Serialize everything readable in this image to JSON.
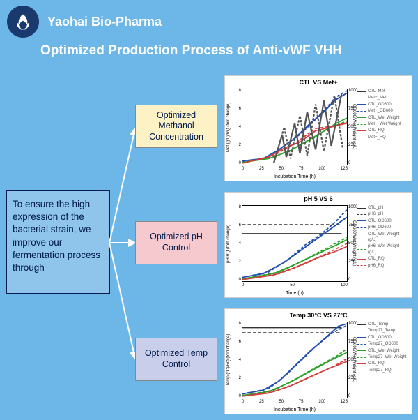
{
  "company": "Yaohai Bio-Pharma",
  "title": "Optimized Production Process of Anti-vWF VHH",
  "intro": "To ensure the high expression of the bacterial strain, we improve our fermentation process through",
  "boxes": [
    {
      "label": "Optimized Methanol Concentration",
      "bg": "#fdf2c6"
    },
    {
      "label": "Optimized pH Control",
      "bg": "#f6c9ce"
    },
    {
      "label": "Optimized Temp Control",
      "bg": "#c9ceea"
    }
  ],
  "page_bg": "#6db7e8",
  "accent": "#1a3a6e",
  "arrow_color": "#ffffff",
  "charts": [
    {
      "title": "CTL VS Met+",
      "xlabel": "Incubation Time (h)",
      "ylabel_l": "Met (g/L)/RQ (fold change)",
      "ylabel_r": "OD600/Wet Weight (g/L)",
      "xlim": [
        0,
        125
      ],
      "xtick_step": 25,
      "ylim_l": [
        0,
        8
      ],
      "ytick_l_step": 2,
      "ylim_r": [
        0,
        1000
      ],
      "ytick_r_step": 250,
      "legend": [
        {
          "label": "CTL_Met",
          "color": "#333333",
          "dash": false
        },
        {
          "label": "Met+_Met",
          "color": "#333333",
          "dash": true
        },
        {
          "label": "CTL_OD600",
          "color": "#1f4eb0",
          "dash": false
        },
        {
          "label": "Met+_OD600",
          "color": "#1f4eb0",
          "dash": true
        },
        {
          "label": "CTL_Wet Weight",
          "color": "#2aa02a",
          "dash": false
        },
        {
          "label": "Met+_Wet Weight",
          "color": "#2aa02a",
          "dash": true
        },
        {
          "label": "CTL_RQ",
          "color": "#d63c3c",
          "dash": false
        },
        {
          "label": "Met+_RQ",
          "color": "#d63c3c",
          "dash": true
        }
      ],
      "series": [
        {
          "color": "#1f4eb0",
          "dash": false,
          "pts": [
            [
              0,
              0.05
            ],
            [
              0.2,
              0.08
            ],
            [
              0.35,
              0.2
            ],
            [
              0.5,
              0.35
            ],
            [
              0.65,
              0.55
            ],
            [
              0.78,
              0.7
            ],
            [
              0.88,
              0.85
            ],
            [
              1,
              0.95
            ]
          ]
        },
        {
          "color": "#1f4eb0",
          "dash": true,
          "pts": [
            [
              0,
              0.04
            ],
            [
              0.25,
              0.1
            ],
            [
              0.4,
              0.25
            ],
            [
              0.55,
              0.4
            ],
            [
              0.7,
              0.6
            ],
            [
              0.82,
              0.78
            ],
            [
              0.92,
              0.92
            ],
            [
              1,
              0.98
            ]
          ]
        },
        {
          "color": "#2aa02a",
          "dash": false,
          "pts": [
            [
              0,
              0.03
            ],
            [
              0.25,
              0.08
            ],
            [
              0.45,
              0.18
            ],
            [
              0.6,
              0.3
            ],
            [
              0.75,
              0.42
            ],
            [
              0.9,
              0.55
            ],
            [
              1,
              0.62
            ]
          ]
        },
        {
          "color": "#2aa02a",
          "dash": true,
          "pts": [
            [
              0,
              0.03
            ],
            [
              0.3,
              0.1
            ],
            [
              0.5,
              0.22
            ],
            [
              0.68,
              0.35
            ],
            [
              0.82,
              0.48
            ],
            [
              1,
              0.58
            ]
          ]
        },
        {
          "color": "#d63c3c",
          "dash": false,
          "pts": [
            [
              0,
              0.02
            ],
            [
              0.25,
              0.1
            ],
            [
              0.4,
              0.22
            ],
            [
              0.55,
              0.3
            ],
            [
              0.7,
              0.45
            ],
            [
              0.85,
              0.5
            ],
            [
              1,
              0.55
            ]
          ]
        },
        {
          "color": "#d63c3c",
          "dash": true,
          "pts": [
            [
              0,
              0.02
            ],
            [
              0.3,
              0.12
            ],
            [
              0.5,
              0.28
            ],
            [
              0.7,
              0.48
            ],
            [
              0.9,
              0.52
            ],
            [
              1,
              0.56
            ]
          ]
        },
        {
          "color": "#555555",
          "dash": false,
          "pts": [
            [
              0.3,
              0.02
            ],
            [
              0.38,
              0.4
            ],
            [
              0.42,
              0.1
            ],
            [
              0.5,
              0.55
            ],
            [
              0.55,
              0.15
            ],
            [
              0.62,
              0.7
            ],
            [
              0.7,
              0.2
            ],
            [
              0.78,
              0.85
            ],
            [
              0.85,
              0.25
            ],
            [
              0.95,
              0.95
            ]
          ]
        },
        {
          "color": "#555555",
          "dash": true,
          "pts": [
            [
              0.3,
              0.02
            ],
            [
              0.4,
              0.5
            ],
            [
              0.46,
              0.08
            ],
            [
              0.55,
              0.65
            ],
            [
              0.62,
              0.12
            ],
            [
              0.7,
              0.8
            ],
            [
              0.78,
              0.18
            ],
            [
              0.88,
              0.92
            ],
            [
              0.96,
              0.22
            ]
          ]
        }
      ]
    },
    {
      "title": "pH 5 VS 6",
      "xlabel": "Time (h)",
      "ylabel_l": "pH/RQ (fold change)",
      "ylabel_r": "OD600/Wet Weight (g/L)",
      "xlim": [
        0,
        120
      ],
      "xtick_step": 50,
      "ylim_l": [
        0,
        8
      ],
      "ytick_l_step": 2,
      "ylim_r": [
        0,
        1000
      ],
      "ytick_r_step": 250,
      "legend": [
        {
          "label": "CTL_pH",
          "color": "#333333",
          "dash": false
        },
        {
          "label": "pH6_pH",
          "color": "#333333",
          "dash": true
        },
        {
          "label": "CTL_OD600",
          "color": "#1f4eb0",
          "dash": false
        },
        {
          "label": "pH6_OD600",
          "color": "#1f4eb0",
          "dash": true
        },
        {
          "label": "CTL_Wet Weight (g/L)",
          "color": "#2aa02a",
          "dash": false
        },
        {
          "label": "pH6_Wet Weight (g/L)",
          "color": "#2aa02a",
          "dash": true
        },
        {
          "label": "CTL_RQ",
          "color": "#d63c3c",
          "dash": false
        },
        {
          "label": "pH6_RQ",
          "color": "#d63c3c",
          "dash": true
        }
      ],
      "series": [
        {
          "color": "#333333",
          "dash": false,
          "pts": [
            [
              0,
              0.63
            ],
            [
              0.95,
              0.63
            ]
          ]
        },
        {
          "color": "#333333",
          "dash": true,
          "pts": [
            [
              0,
              0.75
            ],
            [
              0.95,
              0.75
            ]
          ]
        },
        {
          "color": "#1f4eb0",
          "dash": false,
          "pts": [
            [
              0,
              0.05
            ],
            [
              0.2,
              0.1
            ],
            [
              0.4,
              0.25
            ],
            [
              0.55,
              0.4
            ],
            [
              0.7,
              0.55
            ],
            [
              0.85,
              0.7
            ],
            [
              1,
              0.85
            ]
          ]
        },
        {
          "color": "#1f4eb0",
          "dash": true,
          "pts": [
            [
              0,
              0.05
            ],
            [
              0.25,
              0.12
            ],
            [
              0.45,
              0.3
            ],
            [
              0.6,
              0.48
            ],
            [
              0.75,
              0.62
            ],
            [
              0.9,
              0.8
            ],
            [
              1,
              0.95
            ]
          ]
        },
        {
          "color": "#2aa02a",
          "dash": false,
          "pts": [
            [
              0,
              0.03
            ],
            [
              0.3,
              0.1
            ],
            [
              0.5,
              0.22
            ],
            [
              0.7,
              0.35
            ],
            [
              0.9,
              0.48
            ],
            [
              1,
              0.55
            ]
          ]
        },
        {
          "color": "#2aa02a",
          "dash": true,
          "pts": [
            [
              0,
              0.03
            ],
            [
              0.35,
              0.12
            ],
            [
              0.55,
              0.25
            ],
            [
              0.75,
              0.4
            ],
            [
              1,
              0.58
            ]
          ]
        },
        {
          "color": "#d63c3c",
          "dash": false,
          "pts": [
            [
              0,
              0.02
            ],
            [
              0.3,
              0.08
            ],
            [
              0.5,
              0.18
            ],
            [
              0.7,
              0.3
            ],
            [
              0.9,
              0.4
            ],
            [
              1,
              0.46
            ]
          ]
        },
        {
          "color": "#d63c3c",
          "dash": true,
          "pts": [
            [
              0,
              0.02
            ],
            [
              0.35,
              0.1
            ],
            [
              0.55,
              0.2
            ],
            [
              0.78,
              0.35
            ],
            [
              1,
              0.5
            ]
          ]
        }
      ]
    },
    {
      "title": "Temp 30°C VS 27°C",
      "xlabel": "Incubation Time (h)",
      "ylabel_l": "Temp (°C)/RQ (fold change)",
      "ylabel_r": "OD600/Wet Weight (g/L)",
      "xlim": [
        0,
        125
      ],
      "xtick_step": 25,
      "ylim_l": [
        0,
        8
      ],
      "ytick_l_step": 2,
      "ylim_r": [
        0,
        1000
      ],
      "ytick_r_step": 250,
      "legend": [
        {
          "label": "CTL_Temp",
          "color": "#333333",
          "dash": false
        },
        {
          "label": "Temp27_Temp",
          "color": "#333333",
          "dash": true
        },
        {
          "label": "CTL_OD600",
          "color": "#1f4eb0",
          "dash": false
        },
        {
          "label": "Temp27_OD600",
          "color": "#1f4eb0",
          "dash": true
        },
        {
          "label": "CTL_Wet Weight",
          "color": "#2aa02a",
          "dash": false
        },
        {
          "label": "Temp27_Wet Weight",
          "color": "#2aa02a",
          "dash": true
        },
        {
          "label": "CTL_RQ",
          "color": "#d63c3c",
          "dash": false
        },
        {
          "label": "Temp27_RQ",
          "color": "#d63c3c",
          "dash": true
        }
      ],
      "series": [
        {
          "color": "#333333",
          "dash": false,
          "pts": [
            [
              0,
              0.93
            ],
            [
              0.95,
              0.93
            ]
          ]
        },
        {
          "color": "#333333",
          "dash": true,
          "pts": [
            [
              0,
              0.86
            ],
            [
              0.95,
              0.86
            ]
          ]
        },
        {
          "color": "#1f4eb0",
          "dash": false,
          "pts": [
            [
              0,
              0.05
            ],
            [
              0.2,
              0.1
            ],
            [
              0.35,
              0.22
            ],
            [
              0.5,
              0.42
            ],
            [
              0.65,
              0.62
            ],
            [
              0.8,
              0.8
            ],
            [
              0.92,
              0.95
            ],
            [
              1,
              0.98
            ]
          ]
        },
        {
          "color": "#1f4eb0",
          "dash": true,
          "pts": [
            [
              0,
              0.05
            ],
            [
              0.25,
              0.12
            ],
            [
              0.4,
              0.28
            ],
            [
              0.55,
              0.48
            ],
            [
              0.7,
              0.68
            ],
            [
              0.85,
              0.85
            ],
            [
              1,
              0.96
            ]
          ]
        },
        {
          "color": "#2aa02a",
          "dash": false,
          "pts": [
            [
              0,
              0.03
            ],
            [
              0.25,
              0.08
            ],
            [
              0.45,
              0.2
            ],
            [
              0.65,
              0.35
            ],
            [
              0.85,
              0.5
            ],
            [
              1,
              0.6
            ]
          ]
        },
        {
          "color": "#2aa02a",
          "dash": true,
          "pts": [
            [
              0,
              0.03
            ],
            [
              0.3,
              0.1
            ],
            [
              0.5,
              0.24
            ],
            [
              0.7,
              0.4
            ],
            [
              0.9,
              0.55
            ],
            [
              1,
              0.65
            ]
          ]
        },
        {
          "color": "#d63c3c",
          "dash": false,
          "pts": [
            [
              0,
              0.02
            ],
            [
              0.25,
              0.06
            ],
            [
              0.45,
              0.15
            ],
            [
              0.65,
              0.28
            ],
            [
              0.85,
              0.4
            ],
            [
              1,
              0.48
            ]
          ]
        },
        {
          "color": "#d63c3c",
          "dash": true,
          "pts": [
            [
              0,
              0.02
            ],
            [
              0.3,
              0.08
            ],
            [
              0.5,
              0.18
            ],
            [
              0.72,
              0.32
            ],
            [
              0.92,
              0.45
            ],
            [
              1,
              0.52
            ]
          ]
        }
      ]
    }
  ]
}
